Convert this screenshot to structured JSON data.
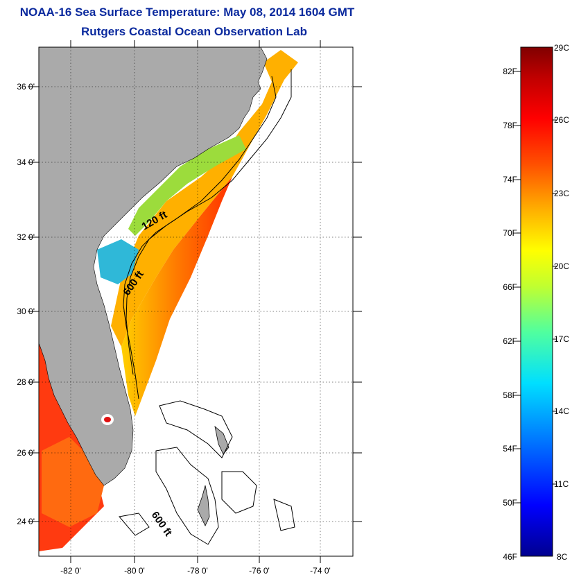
{
  "title": "NOAA-16 Sea Surface Temperature:  May 08, 2014 1604 GMT",
  "subtitle": "Rutgers Coastal Ocean Observation Lab",
  "map": {
    "lat_ticks": [
      "36 0'",
      "34 0'",
      "32 0'",
      "30 0'",
      "28 0'",
      "26 0'",
      "24 0'"
    ],
    "lon_ticks": [
      "-82 0'",
      "-80 0'",
      "-78 0'",
      "-76 0'",
      "-74 0'"
    ],
    "contour_labels": [
      "120 ft",
      "600 ft",
      "600 ft"
    ],
    "colors": {
      "land": "#aaaaaa",
      "water_nodata": "#ffffff"
    }
  },
  "colorbar": {
    "f_labels": [
      "82F",
      "78F",
      "74F",
      "70F",
      "66F",
      "62F",
      "58F",
      "54F",
      "50F",
      "46F"
    ],
    "c_labels": [
      "29C",
      "26C",
      "23C",
      "20C",
      "17C",
      "14C",
      "11C",
      "8C"
    ],
    "stops": [
      "#00008f",
      "#0000ff",
      "#0070ff",
      "#00dfff",
      "#50ff9f",
      "#c0ff30",
      "#ffff00",
      "#ffb000",
      "#ff5000",
      "#ff0000",
      "#c00000",
      "#800000"
    ]
  }
}
